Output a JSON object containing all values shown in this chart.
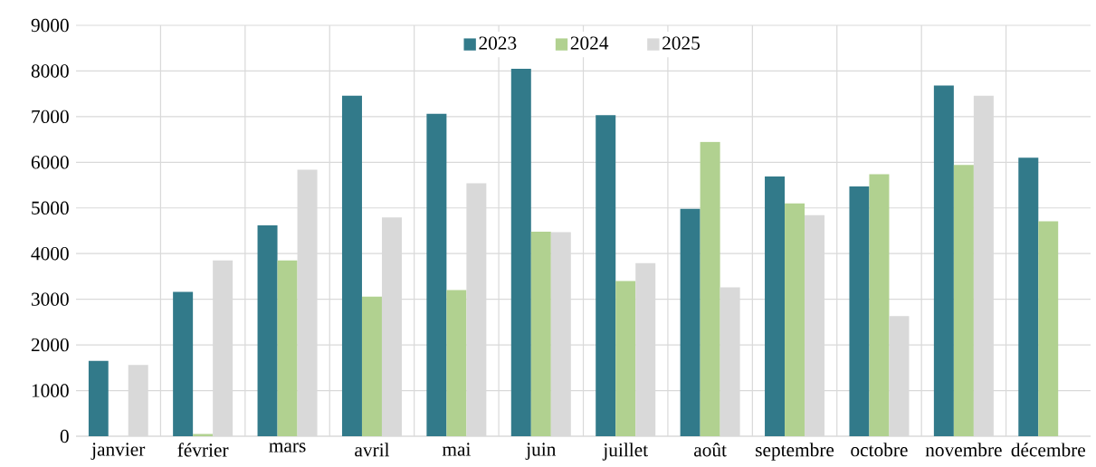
{
  "chart_data": {
    "type": "bar",
    "categories": [
      "janvier",
      "février",
      "mars",
      "avril",
      "mai",
      "juin",
      "juillet",
      "août",
      "septembre",
      "octobre",
      "novembre",
      "décembre"
    ],
    "series": [
      {
        "name": "2023",
        "color": "#327a8a",
        "values": [
          1650,
          3160,
          4620,
          7460,
          7060,
          8050,
          7030,
          4980,
          5690,
          5470,
          7680,
          6100
        ]
      },
      {
        "name": "2024",
        "color": "#b1d190",
        "values": [
          null,
          50,
          3850,
          3060,
          3200,
          4480,
          3400,
          6450,
          5100,
          5740,
          5940,
          4710
        ]
      },
      {
        "name": "2025",
        "color": "#d9d9d9",
        "values": [
          1560,
          3850,
          5840,
          4790,
          5540,
          4470,
          3790,
          3260,
          4840,
          2630,
          7460,
          null
        ]
      }
    ],
    "ylim": [
      0,
      9000
    ],
    "yticks": [
      0,
      1000,
      2000,
      3000,
      4000,
      5000,
      6000,
      7000,
      8000,
      9000
    ],
    "grid": true,
    "legend": "top"
  }
}
